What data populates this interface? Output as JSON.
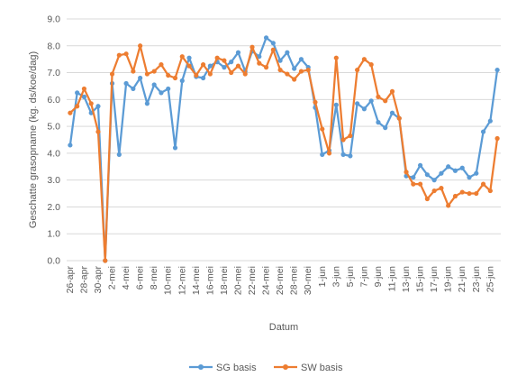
{
  "chart_data": {
    "type": "line",
    "title": "",
    "xlabel": "Datum",
    "ylabel": "Geschatte grasopname (kg. ds/koe/dag)",
    "ylim": [
      0,
      9
    ],
    "yticks": [
      "0.0",
      "1.0",
      "2.0",
      "3.0",
      "4.0",
      "5.0",
      "6.0",
      "7.0",
      "8.0",
      "9.0"
    ],
    "grid": "horizontal",
    "legend": "bottom",
    "x_tick_labels": [
      "26-apr",
      "28-apr",
      "30-apr",
      "2-mei",
      "4-mei",
      "6-mei",
      "8-mei",
      "10-mei",
      "12-mei",
      "14-mei",
      "16-mei",
      "18-mei",
      "20-mei",
      "22-mei",
      "24-mei",
      "26-mei",
      "28-mei",
      "30-mei",
      "1-jun",
      "3-jun",
      "5-jun",
      "7-jun",
      "9-jun",
      "11-jun",
      "13-jun",
      "15-jun",
      "17-jun",
      "19-jun",
      "21-jun",
      "23-jun",
      "25-jun"
    ],
    "categories": [
      "26-apr",
      "27-apr",
      "28-apr",
      "29-apr",
      "30-apr",
      "1-mei",
      "2-mei",
      "3-mei",
      "4-mei",
      "5-mei",
      "6-mei",
      "7-mei",
      "8-mei",
      "9-mei",
      "10-mei",
      "11-mei",
      "12-mei",
      "13-mei",
      "14-mei",
      "15-mei",
      "16-mei",
      "17-mei",
      "18-mei",
      "19-mei",
      "20-mei",
      "21-mei",
      "22-mei",
      "23-mei",
      "24-mei",
      "25-mei",
      "26-mei",
      "27-mei",
      "28-mei",
      "29-mei",
      "30-mei",
      "31-mei",
      "1-jun",
      "2-jun",
      "3-jun",
      "4-jun",
      "5-jun",
      "6-jun",
      "7-jun",
      "8-jun",
      "9-jun",
      "10-jun",
      "11-jun",
      "12-jun",
      "13-jun",
      "14-jun",
      "15-jun",
      "16-jun",
      "17-jun",
      "18-jun",
      "19-jun",
      "20-jun",
      "21-jun",
      "22-jun",
      "23-jun",
      "24-jun",
      "25-jun",
      "26-jun"
    ],
    "series": [
      {
        "name": "SG basis",
        "color": "#5B9BD5",
        "values": [
          4.3,
          6.25,
          6.1,
          5.5,
          5.75,
          0.0,
          6.6,
          3.95,
          6.6,
          6.4,
          6.8,
          5.85,
          6.55,
          6.25,
          6.4,
          4.2,
          6.7,
          7.55,
          6.85,
          6.8,
          7.25,
          7.4,
          7.2,
          7.4,
          7.75,
          7.05,
          7.8,
          7.6,
          8.3,
          8.1,
          7.45,
          7.75,
          7.15,
          7.5,
          7.2,
          5.7,
          3.95,
          4.1,
          5.8,
          3.95,
          3.9,
          5.85,
          5.65,
          5.95,
          5.15,
          4.95,
          5.5,
          5.3,
          3.15,
          3.1,
          3.55,
          3.2,
          3.0,
          3.25,
          3.5,
          3.35,
          3.45,
          3.1,
          3.25,
          4.8,
          5.2,
          7.1
        ]
      },
      {
        "name": "SW basis",
        "color": "#ED7D31",
        "values": [
          5.5,
          5.75,
          6.4,
          5.85,
          4.8,
          0.0,
          6.95,
          7.65,
          7.7,
          7.05,
          8.0,
          6.95,
          7.05,
          7.3,
          6.9,
          6.8,
          7.6,
          7.25,
          6.9,
          7.3,
          6.95,
          7.55,
          7.45,
          7.0,
          7.25,
          6.95,
          7.95,
          7.35,
          7.2,
          7.85,
          7.1,
          6.95,
          6.75,
          7.05,
          7.1,
          5.9,
          4.9,
          4.0,
          7.55,
          4.5,
          4.65,
          7.1,
          7.5,
          7.3,
          6.1,
          5.95,
          6.3,
          5.3,
          3.3,
          2.85,
          2.85,
          2.3,
          2.6,
          2.7,
          2.05,
          2.4,
          2.55,
          2.5,
          2.5,
          2.85,
          2.6,
          4.55
        ]
      }
    ]
  }
}
